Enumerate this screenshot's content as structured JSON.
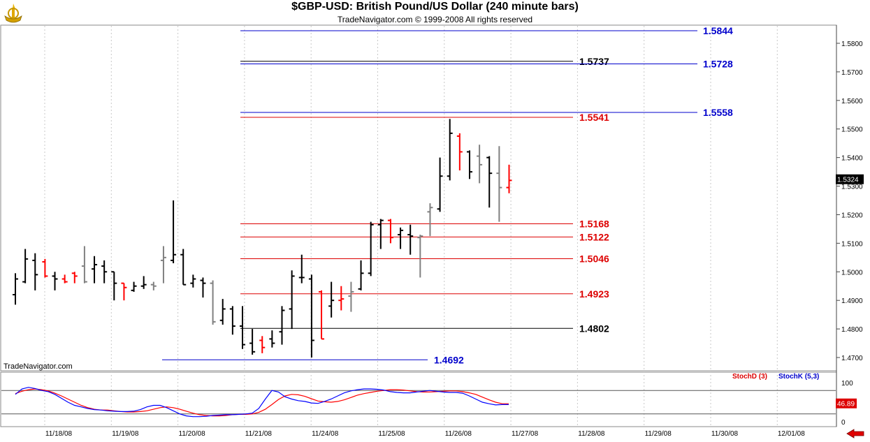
{
  "header": {
    "title": "$GBP-USD:  British Pound/US Dollar  (240 minute bars)",
    "subtitle": "TradeNavigator.com © 1999-2008 All rights reserved"
  },
  "watermark": "TradeNavigator.com",
  "current_price_label": "1.5324",
  "stoch_value_label": "46.89",
  "stoch_legend": {
    "d": "StochD (3)",
    "k": "StochK (5,3)"
  },
  "colors": {
    "up": "#000000",
    "down": "#ff0000",
    "neutral": "#808080",
    "blue_level": "#0000cc",
    "red_level": "#dd0000",
    "black_level": "#000000",
    "stoch_d": "#ff0000",
    "stoch_k": "#0000ff"
  },
  "chart_data": {
    "type": "ohlc",
    "title": "$GBP-USD:  British Pound/US Dollar  (240 minute bars)",
    "ylim": [
      1.465,
      1.587
    ],
    "y_ticks": [
      "1.4700",
      "1.4800",
      "1.4900",
      "1.5000",
      "1.5100",
      "1.5200",
      "1.5300",
      "1.5400",
      "1.5500",
      "1.5600",
      "1.5700",
      "1.5800"
    ],
    "x_ticks": [
      "11/18/08",
      "11/19/08",
      "11/20/08",
      "11/21/08",
      "11/24/08",
      "11/25/08",
      "11/26/08",
      "11/27/08",
      "11/28/08",
      "11/29/08",
      "11/30/08",
      "12/01/08"
    ],
    "bars": [
      {
        "o": 1.492,
        "h": 1.4995,
        "l": 1.4885,
        "c": 1.4975,
        "t": "up"
      },
      {
        "o": 1.4965,
        "h": 1.508,
        "l": 1.496,
        "c": 1.5045,
        "t": "up"
      },
      {
        "o": 1.504,
        "h": 1.5065,
        "l": 1.4935,
        "c": 1.499,
        "t": "up"
      },
      {
        "o": 1.5035,
        "h": 1.5045,
        "l": 1.498,
        "c": 1.4985,
        "t": "down"
      },
      {
        "o": 1.4985,
        "h": 1.5,
        "l": 1.4935,
        "c": 1.4975,
        "t": "up"
      },
      {
        "o": 1.4975,
        "h": 1.499,
        "l": 1.496,
        "c": 1.4965,
        "t": "down"
      },
      {
        "o": 1.4995,
        "h": 1.5,
        "l": 1.496,
        "c": 1.4985,
        "t": "down"
      },
      {
        "o": 1.502,
        "h": 1.509,
        "l": 1.496,
        "c": 1.4965,
        "t": "neutral"
      },
      {
        "o": 1.501,
        "h": 1.5055,
        "l": 1.496,
        "c": 1.5025,
        "t": "up"
      },
      {
        "o": 1.502,
        "h": 1.504,
        "l": 1.496,
        "c": 1.5,
        "t": "up"
      },
      {
        "o": 1.5,
        "h": 1.5,
        "l": 1.49,
        "c": 1.496,
        "t": "up"
      },
      {
        "o": 1.496,
        "h": 1.496,
        "l": 1.49,
        "c": 1.4945,
        "t": "down"
      },
      {
        "o": 1.4935,
        "h": 1.4965,
        "l": 1.493,
        "c": 1.495,
        "t": "up"
      },
      {
        "o": 1.495,
        "h": 1.4985,
        "l": 1.494,
        "c": 1.4955,
        "t": "up"
      },
      {
        "o": 1.4955,
        "h": 1.4965,
        "l": 1.4935,
        "c": 1.495,
        "t": "neutral"
      },
      {
        "o": 1.504,
        "h": 1.509,
        "l": 1.496,
        "c": 1.505,
        "t": "neutral"
      },
      {
        "o": 1.504,
        "h": 1.525,
        "l": 1.503,
        "c": 1.506,
        "t": "up"
      },
      {
        "o": 1.506,
        "h": 1.508,
        "l": 1.4955,
        "c": 1.4955,
        "t": "up"
      },
      {
        "o": 1.496,
        "h": 1.499,
        "l": 1.4945,
        "c": 1.4975,
        "t": "up"
      },
      {
        "o": 1.497,
        "h": 1.498,
        "l": 1.491,
        "c": 1.496,
        "t": "up"
      },
      {
        "o": 1.496,
        "h": 1.497,
        "l": 1.4815,
        "c": 1.4825,
        "t": "neutral"
      },
      {
        "o": 1.483,
        "h": 1.4905,
        "l": 1.4815,
        "c": 1.487,
        "t": "up"
      },
      {
        "o": 1.487,
        "h": 1.488,
        "l": 1.478,
        "c": 1.481,
        "t": "up"
      },
      {
        "o": 1.481,
        "h": 1.488,
        "l": 1.473,
        "c": 1.4745,
        "t": "up"
      },
      {
        "o": 1.475,
        "h": 1.48,
        "l": 1.471,
        "c": 1.472,
        "t": "up"
      },
      {
        "o": 1.476,
        "h": 1.4775,
        "l": 1.4715,
        "c": 1.4735,
        "t": "down"
      },
      {
        "o": 1.4765,
        "h": 1.4795,
        "l": 1.4735,
        "c": 1.475,
        "t": "up"
      },
      {
        "o": 1.479,
        "h": 1.488,
        "l": 1.4745,
        "c": 1.4865,
        "t": "up"
      },
      {
        "o": 1.487,
        "h": 1.5005,
        "l": 1.48,
        "c": 1.4985,
        "t": "up"
      },
      {
        "o": 1.498,
        "h": 1.506,
        "l": 1.496,
        "c": 1.498,
        "t": "up"
      },
      {
        "o": 1.4975,
        "h": 1.499,
        "l": 1.47,
        "c": 1.476,
        "t": "up"
      },
      {
        "o": 1.493,
        "h": 1.4935,
        "l": 1.4765,
        "c": 1.4765,
        "t": "down"
      },
      {
        "o": 1.488,
        "h": 1.4965,
        "l": 1.484,
        "c": 1.49,
        "t": "up"
      },
      {
        "o": 1.49,
        "h": 1.495,
        "l": 1.4865,
        "c": 1.4905,
        "t": "down"
      },
      {
        "o": 1.4915,
        "h": 1.4965,
        "l": 1.486,
        "c": 1.493,
        "t": "neutral"
      },
      {
        "o": 1.494,
        "h": 1.504,
        "l": 1.4935,
        "c": 1.4995,
        "t": "up"
      },
      {
        "o": 1.4995,
        "h": 1.5175,
        "l": 1.4985,
        "c": 1.5165,
        "t": "up"
      },
      {
        "o": 1.5165,
        "h": 1.5185,
        "l": 1.508,
        "c": 1.518,
        "t": "up"
      },
      {
        "o": 1.518,
        "h": 1.5185,
        "l": 1.51,
        "c": 1.512,
        "t": "down"
      },
      {
        "o": 1.513,
        "h": 1.5155,
        "l": 1.508,
        "c": 1.5145,
        "t": "up"
      },
      {
        "o": 1.513,
        "h": 1.5165,
        "l": 1.506,
        "c": 1.5125,
        "t": "up"
      },
      {
        "o": 1.512,
        "h": 1.513,
        "l": 1.498,
        "c": 1.5125,
        "t": "neutral"
      },
      {
        "o": 1.521,
        "h": 1.524,
        "l": 1.5125,
        "c": 1.5225,
        "t": "neutral"
      },
      {
        "o": 1.522,
        "h": 1.54,
        "l": 1.521,
        "c": 1.5335,
        "t": "up"
      },
      {
        "o": 1.5335,
        "h": 1.5535,
        "l": 1.532,
        "c": 1.5485,
        "t": "up"
      },
      {
        "o": 1.5475,
        "h": 1.5485,
        "l": 1.5355,
        "c": 1.542,
        "t": "down"
      },
      {
        "o": 1.542,
        "h": 1.5425,
        "l": 1.5325,
        "c": 1.535,
        "t": "up"
      },
      {
        "o": 1.5405,
        "h": 1.5445,
        "l": 1.531,
        "c": 1.5375,
        "t": "neutral"
      },
      {
        "o": 1.54,
        "h": 1.5405,
        "l": 1.5225,
        "c": 1.5345,
        "t": "up"
      },
      {
        "o": 1.5345,
        "h": 1.544,
        "l": 1.5175,
        "c": 1.5295,
        "t": "neutral"
      },
      {
        "o": 1.5295,
        "h": 1.5375,
        "l": 1.5275,
        "c": 1.532,
        "t": "down"
      }
    ],
    "levels": [
      {
        "value": 1.5844,
        "label": "1.5844",
        "color": "blue"
      },
      {
        "value": 1.5737,
        "label": "1.5737",
        "color": "black"
      },
      {
        "value": 1.5728,
        "label": "1.5728",
        "color": "blue"
      },
      {
        "value": 1.5558,
        "label": "1.5558",
        "color": "blue"
      },
      {
        "value": 1.5541,
        "label": "1.5541",
        "color": "red"
      },
      {
        "value": 1.5168,
        "label": "1.5168",
        "color": "red"
      },
      {
        "value": 1.5122,
        "label": "1.5122",
        "color": "red"
      },
      {
        "value": 1.5046,
        "label": "1.5046",
        "color": "red"
      },
      {
        "value": 1.4923,
        "label": "1.4923",
        "color": "red"
      },
      {
        "value": 1.4802,
        "label": "1.4802",
        "color": "black"
      },
      {
        "value": 1.4692,
        "label": "1.4692",
        "color": "blue"
      }
    ],
    "stochastic": {
      "ylim": [
        0,
        100
      ],
      "y_ticks": [
        "100",
        "0"
      ],
      "ref_levels": [
        80,
        20
      ],
      "stoch_d": [
        72,
        78,
        82,
        84,
        82,
        79,
        73,
        66,
        58,
        50,
        42,
        36,
        32,
        30,
        30,
        28,
        26,
        25,
        25,
        26,
        28,
        32,
        36,
        38,
        36,
        32,
        27,
        22,
        18,
        16,
        15,
        15,
        16,
        18,
        19,
        19,
        20,
        24,
        32,
        44,
        57,
        66,
        70,
        69,
        65,
        59,
        53,
        51,
        50,
        52,
        56,
        62,
        68,
        72,
        75,
        78,
        80,
        82,
        82,
        81,
        79,
        77,
        76,
        76,
        77,
        78,
        79,
        79,
        77,
        74,
        70,
        63,
        56,
        50,
        46,
        46
      ],
      "stoch_k": [
        70,
        84,
        88,
        85,
        80,
        77,
        70,
        60,
        50,
        42,
        38,
        34,
        31,
        30,
        28,
        27,
        26,
        26,
        27,
        31,
        38,
        42,
        42,
        36,
        28,
        20,
        15,
        13,
        13,
        14,
        16,
        17,
        18,
        18,
        19,
        20,
        22,
        34,
        58,
        80,
        76,
        64,
        58,
        54,
        52,
        48,
        47,
        52,
        58,
        66,
        74,
        79,
        82,
        84,
        84,
        83,
        81,
        77,
        75,
        74,
        74,
        76,
        78,
        80,
        78,
        76,
        75,
        75,
        73,
        66,
        58,
        50,
        46,
        43,
        44,
        44
      ]
    },
    "x_axis_label": "",
    "y_axis_label": ""
  }
}
